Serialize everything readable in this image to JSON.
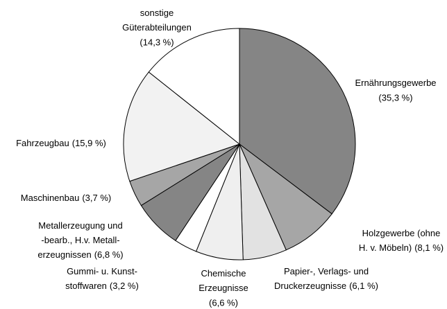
{
  "chart_data": {
    "type": "pie",
    "categories": [
      [
        "Ernährungsgewerbe"
      ],
      [
        "Holzgewerbe (ohne",
        "H. v. Möbeln)"
      ],
      [
        "Papier-, Verlags- und",
        "Druckerzeugnisse"
      ],
      [
        "Chemische",
        "Erzeugnisse"
      ],
      [
        "Gummi- u. Kunst-",
        "stoffwaren"
      ],
      [
        "Metallerzeugung und",
        "-bearb., H.v. Metall-",
        "erzeugnissen"
      ],
      [
        "Maschinenbau"
      ],
      [
        "Fahrzeugbau"
      ],
      [
        "sonstige",
        "Güterabteilungen"
      ]
    ],
    "values": [
      35.3,
      8.1,
      6.1,
      6.6,
      3.2,
      6.8,
      3.7,
      15.9,
      14.3
    ],
    "value_labels": [
      "(35,3 %)",
      "(8,1 %)",
      "(6,1 %)",
      "(6,6 %)",
      "(3,2 %)",
      "(6,8 %)",
      "(3,7 %)",
      "(15,9 %)",
      "(14,3 %)"
    ],
    "colors": [
      "#858585",
      "#a6a6a6",
      "#e2e2e2",
      "#efefef",
      "#ffffff",
      "#858585",
      "#a6a6a6",
      "#f2f2f2",
      "#ffffff"
    ]
  }
}
